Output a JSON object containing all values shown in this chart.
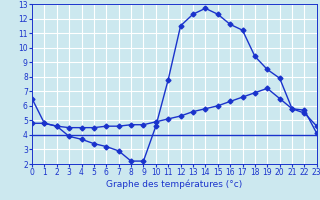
{
  "xlabel": "Graphe des températures (°c)",
  "bg_color": "#cce8ef",
  "grid_color": "#ffffff",
  "line_color": "#1a33cc",
  "x_min": 0,
  "x_max": 23,
  "y_min": 2,
  "y_max": 13,
  "curve1_x": [
    0,
    1,
    2,
    3,
    4,
    5,
    6,
    7,
    8,
    9,
    10,
    11,
    12,
    13,
    14,
    15,
    16,
    17,
    18,
    19,
    20,
    21,
    22,
    23
  ],
  "curve1_y": [
    6.5,
    4.8,
    4.6,
    3.9,
    3.7,
    3.4,
    3.2,
    2.9,
    2.2,
    2.2,
    4.6,
    7.8,
    11.5,
    12.3,
    12.7,
    12.3,
    11.6,
    11.2,
    9.4,
    8.5,
    7.9,
    5.8,
    5.5,
    4.6
  ],
  "curve2_x": [
    0,
    1,
    2,
    3,
    4,
    5,
    6,
    7,
    8,
    9,
    10,
    11,
    12,
    13,
    14,
    15,
    16,
    17,
    18,
    19,
    20,
    21,
    22,
    23
  ],
  "curve2_y": [
    4.8,
    4.8,
    4.6,
    4.5,
    4.5,
    4.5,
    4.6,
    4.6,
    4.7,
    4.7,
    4.9,
    5.1,
    5.3,
    5.6,
    5.8,
    6.0,
    6.3,
    6.6,
    6.9,
    7.2,
    6.5,
    5.8,
    5.7,
    4.1
  ],
  "curve3_x": [
    0,
    1,
    2,
    3,
    4,
    5,
    6,
    7,
    8,
    9,
    14,
    20,
    21,
    22,
    23
  ],
  "curve3_y": [
    4.0,
    4.0,
    4.0,
    4.0,
    4.0,
    4.0,
    4.0,
    4.0,
    4.0,
    4.0,
    4.0,
    4.0,
    4.0,
    4.0,
    4.0
  ],
  "marker_size": 2.5,
  "line_width": 1.0,
  "font_size": 6.5,
  "tick_font_size": 5.5
}
